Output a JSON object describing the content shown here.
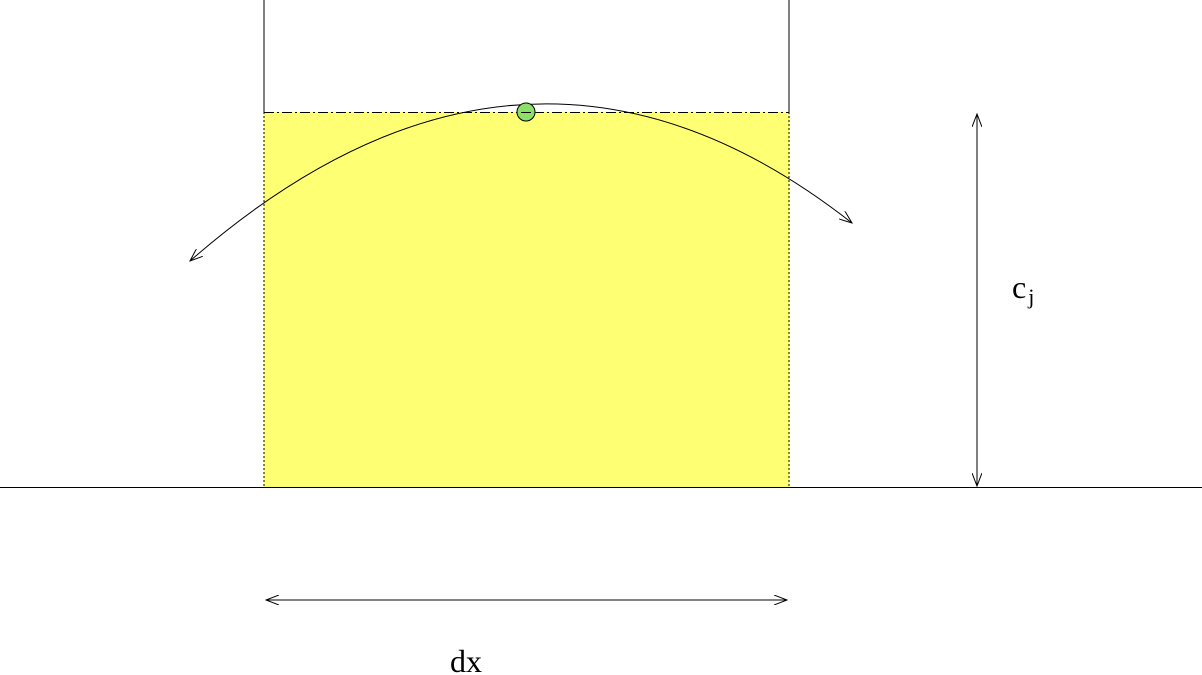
{
  "labels": {
    "height_base": "c",
    "height_sub": "j",
    "width": "dx"
  },
  "colors": {
    "cell_fill": "#FFFF73",
    "point_fill": "#8CE06A",
    "line": "#000000"
  }
}
